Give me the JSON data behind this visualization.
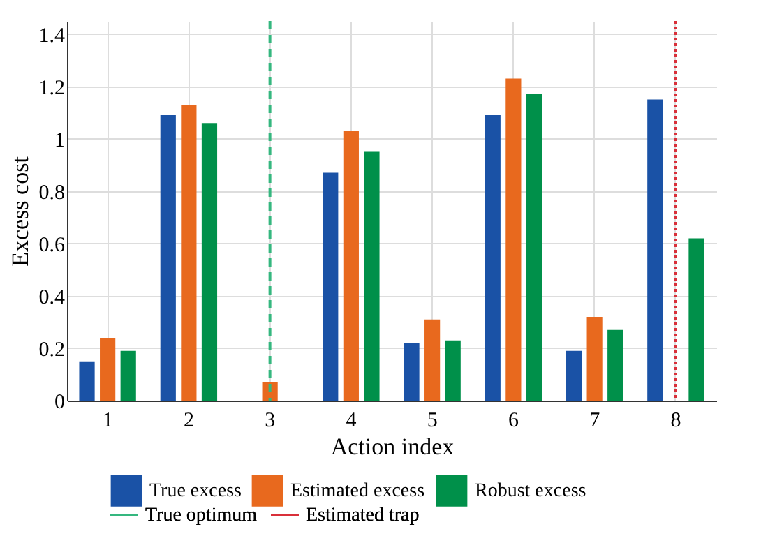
{
  "chart_data": {
    "type": "bar",
    "xlabel": "Action index",
    "ylabel": "Excess cost",
    "categories": [
      "1",
      "2",
      "3",
      "4",
      "5",
      "6",
      "7",
      "8"
    ],
    "series": [
      {
        "name": "True excess",
        "color": "#1a52a6",
        "values": [
          0.15,
          1.09,
          0,
          0.87,
          0.22,
          1.09,
          0.19,
          1.15
        ]
      },
      {
        "name": "Estimated excess",
        "color": "#e8691e",
        "values": [
          0.24,
          1.13,
          0.07,
          1.03,
          0.31,
          1.23,
          0.32,
          0
        ]
      },
      {
        "name": "Robust excess",
        "color": "#00904a",
        "values": [
          0.19,
          1.06,
          0,
          0.95,
          0.23,
          1.17,
          0.27,
          0.62
        ]
      }
    ],
    "ylim": [
      0,
      1.45
    ],
    "yticks": [
      0,
      0.2,
      0.4,
      0.6,
      0.8,
      1,
      1.2,
      1.4
    ],
    "ref_lines": [
      {
        "axis": "x",
        "value": "3",
        "label": "True optimum",
        "color": "#35b77f",
        "line_style": "dashed"
      },
      {
        "axis": "x",
        "value": "8",
        "label": "Estimated trap",
        "color": "#d9303a",
        "line_style": "dotted"
      }
    ],
    "grid": true,
    "legend": "bottom"
  }
}
